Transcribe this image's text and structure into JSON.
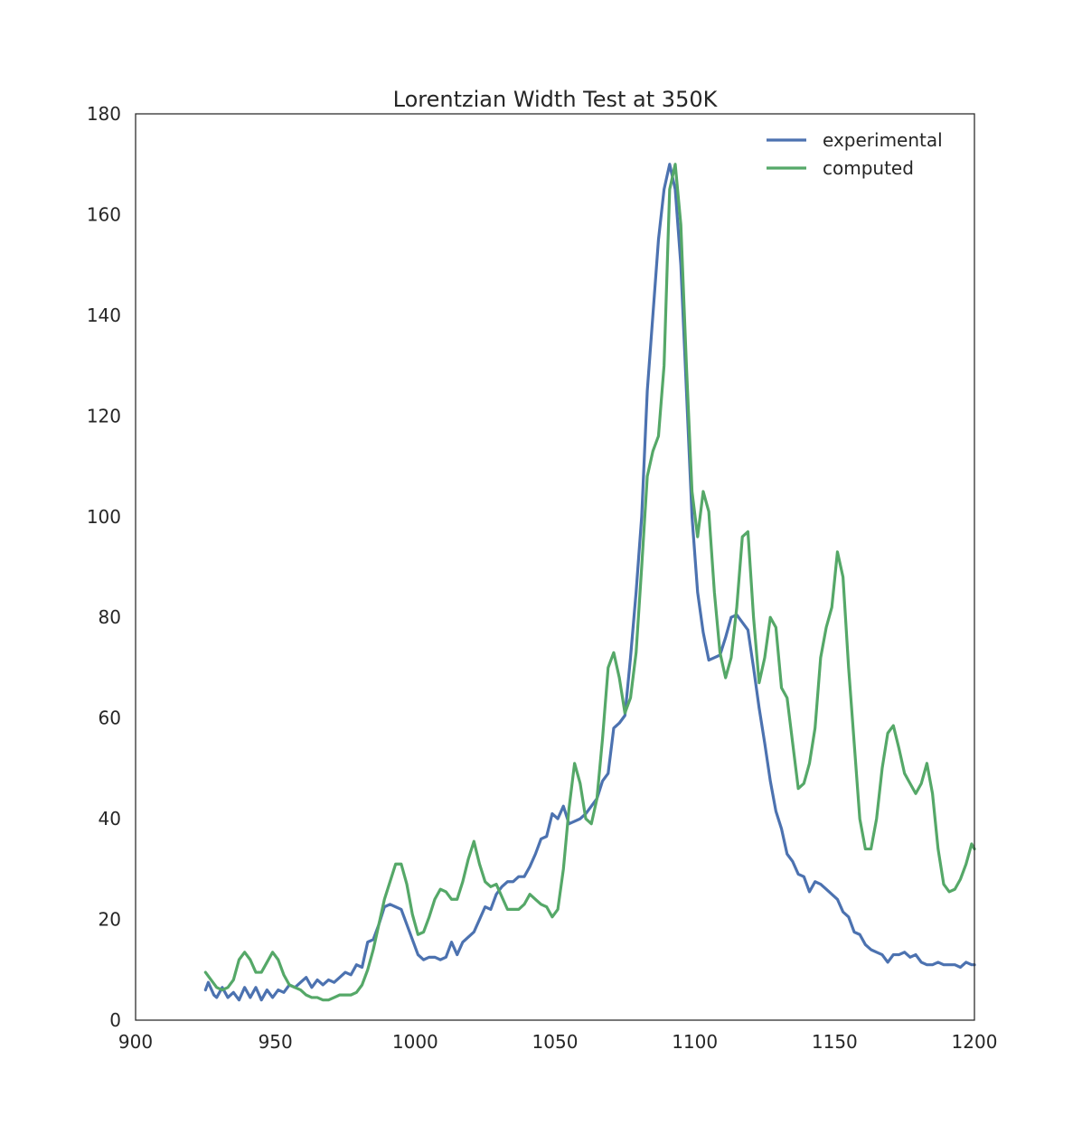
{
  "chart_data": {
    "type": "line",
    "title": "Lorentzian Width Test at 350K",
    "xlabel": "",
    "ylabel": "",
    "xlim": [
      900,
      1200
    ],
    "ylim": [
      0,
      180
    ],
    "xticks": [
      900,
      950,
      1000,
      1050,
      1100,
      1150,
      1200
    ],
    "yticks": [
      0,
      20,
      40,
      60,
      80,
      100,
      120,
      140,
      160,
      180
    ],
    "grid": false,
    "legend_position": "top-right",
    "series": [
      {
        "name": "experimental",
        "color": "#4c72b0",
        "points": [
          [
            925,
            6
          ],
          [
            926,
            7.5
          ],
          [
            928,
            5
          ],
          [
            929,
            4.5
          ],
          [
            931,
            6.5
          ],
          [
            933,
            4.5
          ],
          [
            935,
            5.5
          ],
          [
            937,
            4
          ],
          [
            939,
            6.5
          ],
          [
            941,
            4.5
          ],
          [
            943,
            6.5
          ],
          [
            945,
            4
          ],
          [
            947,
            6
          ],
          [
            949,
            4.5
          ],
          [
            951,
            6
          ],
          [
            953,
            5.5
          ],
          [
            955,
            7
          ],
          [
            957,
            6.5
          ],
          [
            959,
            7.5
          ],
          [
            961,
            8.5
          ],
          [
            963,
            6.5
          ],
          [
            965,
            8
          ],
          [
            967,
            7
          ],
          [
            969,
            8
          ],
          [
            971,
            7.5
          ],
          [
            973,
            8.5
          ],
          [
            975,
            9.5
          ],
          [
            977,
            9
          ],
          [
            979,
            11
          ],
          [
            981,
            10.5
          ],
          [
            983,
            15.5
          ],
          [
            985,
            16
          ],
          [
            987,
            19
          ],
          [
            989,
            22.5
          ],
          [
            991,
            23
          ],
          [
            993,
            22.5
          ],
          [
            995,
            22
          ],
          [
            997,
            19
          ],
          [
            999,
            16
          ],
          [
            1001,
            13
          ],
          [
            1003,
            12
          ],
          [
            1005,
            12.5
          ],
          [
            1007,
            12.5
          ],
          [
            1009,
            12
          ],
          [
            1011,
            12.5
          ],
          [
            1013,
            15.5
          ],
          [
            1015,
            13
          ],
          [
            1017,
            15.5
          ],
          [
            1019,
            16.5
          ],
          [
            1021,
            17.5
          ],
          [
            1023,
            20
          ],
          [
            1025,
            22.5
          ],
          [
            1027,
            22
          ],
          [
            1029,
            25
          ],
          [
            1031,
            26.5
          ],
          [
            1033,
            27.5
          ],
          [
            1035,
            27.5
          ],
          [
            1037,
            28.5
          ],
          [
            1039,
            28.5
          ],
          [
            1041,
            30.5
          ],
          [
            1043,
            33
          ],
          [
            1045,
            36
          ],
          [
            1047,
            36.5
          ],
          [
            1049,
            41
          ],
          [
            1051,
            40
          ],
          [
            1053,
            42.5
          ],
          [
            1055,
            39
          ],
          [
            1057,
            39.5
          ],
          [
            1059,
            40
          ],
          [
            1061,
            41
          ],
          [
            1063,
            42.5
          ],
          [
            1065,
            44
          ],
          [
            1067,
            47.5
          ],
          [
            1069,
            49
          ],
          [
            1071,
            58
          ],
          [
            1073,
            59
          ],
          [
            1075,
            60.5
          ],
          [
            1077,
            72
          ],
          [
            1079,
            85
          ],
          [
            1081,
            100
          ],
          [
            1083,
            125
          ],
          [
            1085,
            140
          ],
          [
            1087,
            155
          ],
          [
            1089,
            165
          ],
          [
            1091,
            170
          ],
          [
            1093,
            165
          ],
          [
            1095,
            150
          ],
          [
            1097,
            125
          ],
          [
            1099,
            100
          ],
          [
            1101,
            85
          ],
          [
            1103,
            77
          ],
          [
            1105,
            71.5
          ],
          [
            1107,
            72
          ],
          [
            1109,
            72.5
          ],
          [
            1111,
            76
          ],
          [
            1113,
            80
          ],
          [
            1115,
            80.5
          ],
          [
            1117,
            79
          ],
          [
            1119,
            77.5
          ],
          [
            1121,
            70
          ],
          [
            1123,
            62
          ],
          [
            1125,
            55
          ],
          [
            1127,
            47.5
          ],
          [
            1129,
            41.5
          ],
          [
            1131,
            38
          ],
          [
            1133,
            33
          ],
          [
            1135,
            31.5
          ],
          [
            1137,
            29
          ],
          [
            1139,
            28.5
          ],
          [
            1141,
            25.5
          ],
          [
            1143,
            27.5
          ],
          [
            1145,
            27
          ],
          [
            1147,
            26
          ],
          [
            1149,
            25
          ],
          [
            1151,
            24
          ],
          [
            1153,
            21.5
          ],
          [
            1155,
            20.5
          ],
          [
            1157,
            17.5
          ],
          [
            1159,
            17
          ],
          [
            1161,
            15
          ],
          [
            1163,
            14
          ],
          [
            1165,
            13.5
          ],
          [
            1167,
            13
          ],
          [
            1169,
            11.5
          ],
          [
            1171,
            13
          ],
          [
            1173,
            13
          ],
          [
            1175,
            13.5
          ],
          [
            1177,
            12.5
          ],
          [
            1179,
            13
          ],
          [
            1181,
            11.5
          ],
          [
            1183,
            11
          ],
          [
            1185,
            11
          ],
          [
            1187,
            11.5
          ],
          [
            1189,
            11
          ],
          [
            1191,
            11
          ],
          [
            1193,
            11
          ],
          [
            1195,
            10.5
          ],
          [
            1197,
            11.5
          ],
          [
            1199,
            11
          ],
          [
            1200,
            11
          ]
        ]
      },
      {
        "name": "computed",
        "color": "#55a868",
        "points": [
          [
            925,
            9.5
          ],
          [
            927,
            8
          ],
          [
            929,
            6.5
          ],
          [
            931,
            6
          ],
          [
            933,
            6.5
          ],
          [
            935,
            8
          ],
          [
            937,
            12
          ],
          [
            939,
            13.5
          ],
          [
            941,
            12
          ],
          [
            943,
            9.5
          ],
          [
            945,
            9.5
          ],
          [
            947,
            11.5
          ],
          [
            949,
            13.5
          ],
          [
            951,
            12
          ],
          [
            953,
            9
          ],
          [
            955,
            7
          ],
          [
            957,
            6.5
          ],
          [
            959,
            6
          ],
          [
            961,
            5
          ],
          [
            963,
            4.5
          ],
          [
            965,
            4.5
          ],
          [
            967,
            4
          ],
          [
            969,
            4
          ],
          [
            971,
            4.5
          ],
          [
            973,
            5
          ],
          [
            975,
            5
          ],
          [
            977,
            5
          ],
          [
            979,
            5.5
          ],
          [
            981,
            7
          ],
          [
            983,
            10
          ],
          [
            985,
            14
          ],
          [
            987,
            19
          ],
          [
            989,
            24
          ],
          [
            991,
            27.5
          ],
          [
            993,
            31
          ],
          [
            995,
            31
          ],
          [
            997,
            27
          ],
          [
            999,
            21
          ],
          [
            1001,
            17
          ],
          [
            1003,
            17.5
          ],
          [
            1005,
            20.5
          ],
          [
            1007,
            24
          ],
          [
            1009,
            26
          ],
          [
            1011,
            25.5
          ],
          [
            1013,
            24
          ],
          [
            1015,
            24
          ],
          [
            1017,
            27.5
          ],
          [
            1019,
            32
          ],
          [
            1021,
            35.5
          ],
          [
            1023,
            31
          ],
          [
            1025,
            27.5
          ],
          [
            1027,
            26.5
          ],
          [
            1029,
            27
          ],
          [
            1031,
            24.5
          ],
          [
            1033,
            22
          ],
          [
            1035,
            22
          ],
          [
            1037,
            22
          ],
          [
            1039,
            23
          ],
          [
            1041,
            25
          ],
          [
            1043,
            24
          ],
          [
            1045,
            23
          ],
          [
            1047,
            22.5
          ],
          [
            1049,
            20.5
          ],
          [
            1051,
            22
          ],
          [
            1053,
            30
          ],
          [
            1055,
            42
          ],
          [
            1057,
            51
          ],
          [
            1059,
            47
          ],
          [
            1061,
            40
          ],
          [
            1063,
            39
          ],
          [
            1065,
            44
          ],
          [
            1067,
            56
          ],
          [
            1069,
            70
          ],
          [
            1071,
            73
          ],
          [
            1073,
            68
          ],
          [
            1075,
            61
          ],
          [
            1077,
            64
          ],
          [
            1079,
            73
          ],
          [
            1081,
            90
          ],
          [
            1083,
            108
          ],
          [
            1085,
            113
          ],
          [
            1087,
            116
          ],
          [
            1089,
            130
          ],
          [
            1091,
            165
          ],
          [
            1093,
            170
          ],
          [
            1095,
            158
          ],
          [
            1097,
            130
          ],
          [
            1099,
            105
          ],
          [
            1101,
            96
          ],
          [
            1103,
            105
          ],
          [
            1105,
            101
          ],
          [
            1107,
            85
          ],
          [
            1109,
            73
          ],
          [
            1111,
            68
          ],
          [
            1113,
            72
          ],
          [
            1115,
            82
          ],
          [
            1117,
            96
          ],
          [
            1119,
            97
          ],
          [
            1121,
            80
          ],
          [
            1123,
            67
          ],
          [
            1125,
            72
          ],
          [
            1127,
            80
          ],
          [
            1129,
            78
          ],
          [
            1131,
            66
          ],
          [
            1133,
            64
          ],
          [
            1135,
            55
          ],
          [
            1137,
            46
          ],
          [
            1139,
            47
          ],
          [
            1141,
            51
          ],
          [
            1143,
            58
          ],
          [
            1145,
            72
          ],
          [
            1147,
            78
          ],
          [
            1149,
            82
          ],
          [
            1151,
            93
          ],
          [
            1153,
            88
          ],
          [
            1155,
            70
          ],
          [
            1157,
            55
          ],
          [
            1159,
            40
          ],
          [
            1161,
            34
          ],
          [
            1163,
            34
          ],
          [
            1165,
            40
          ],
          [
            1167,
            50
          ],
          [
            1169,
            57
          ],
          [
            1171,
            58.5
          ],
          [
            1173,
            54
          ],
          [
            1175,
            49
          ],
          [
            1177,
            47
          ],
          [
            1179,
            45
          ],
          [
            1181,
            47
          ],
          [
            1183,
            51
          ],
          [
            1185,
            45
          ],
          [
            1187,
            34
          ],
          [
            1189,
            27
          ],
          [
            1191,
            25.5
          ],
          [
            1193,
            26
          ],
          [
            1195,
            28
          ],
          [
            1197,
            31
          ],
          [
            1199,
            35
          ],
          [
            1200,
            34
          ]
        ]
      }
    ]
  }
}
